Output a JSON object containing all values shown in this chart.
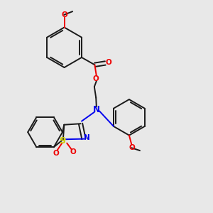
{
  "bg_color": "#e8e8e8",
  "line_color": "#1a1a1a",
  "n_color": "#0000ee",
  "o_color": "#ee0000",
  "s_color": "#cccc00",
  "bond_lw": 1.4,
  "fig_size": [
    3.0,
    3.0
  ],
  "dpi": 100,
  "xlim": [
    0,
    10
  ],
  "ylim": [
    0,
    10
  ]
}
